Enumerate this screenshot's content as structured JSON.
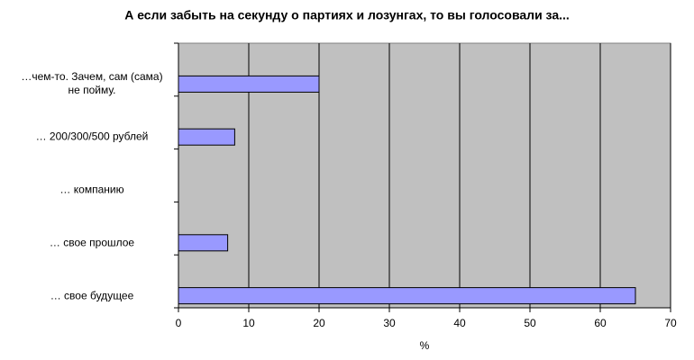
{
  "chart_data": {
    "type": "bar",
    "orientation": "horizontal",
    "title": "А если забыть на секунду о партиях и лозунгах, то вы голосовали за...",
    "categories": [
      "…чем-то. Зачем, сам (сама) не пойму.",
      "… 200/300/500 рублей",
      "… компанию",
      "… свое прошлое",
      "… свое будущее"
    ],
    "values": [
      20,
      8,
      0,
      7,
      65
    ],
    "color": "#9999ff",
    "x_label": "%",
    "xlim": [
      0,
      70
    ],
    "xticks": [
      0,
      10,
      20,
      30,
      40,
      50,
      60,
      70
    ],
    "grid": true
  }
}
